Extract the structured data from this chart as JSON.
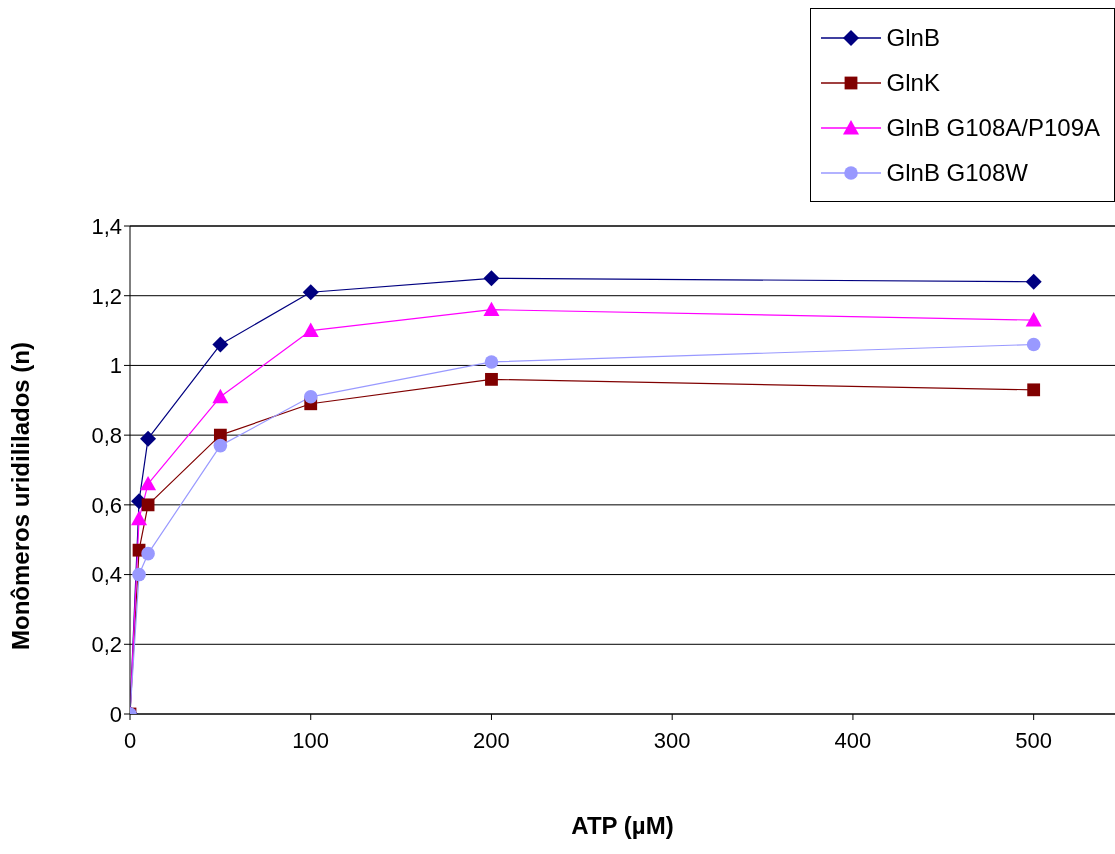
{
  "chart_data": {
    "type": "line",
    "xlabel": "ATP (µM)",
    "ylabel": "Monômeros uridililados (n)",
    "x": [
      0,
      5,
      10,
      50,
      100,
      200,
      500
    ],
    "series": [
      {
        "name": "GlnB",
        "color": "#000080",
        "marker": "diamond",
        "values": [
          0,
          0.61,
          0.79,
          1.06,
          1.21,
          1.25,
          1.24
        ]
      },
      {
        "name": "GlnK",
        "color": "#800000",
        "marker": "square",
        "values": [
          0,
          0.47,
          0.6,
          0.8,
          0.89,
          0.96,
          0.93
        ]
      },
      {
        "name": "GlnB G108A/P109A",
        "color": "#ff00ff",
        "marker": "triangle",
        "values": [
          0,
          0.56,
          0.66,
          0.91,
          1.1,
          1.16,
          1.13
        ]
      },
      {
        "name": "GlnB G108W",
        "color": "#9999ff",
        "marker": "circle",
        "values": [
          0,
          0.4,
          0.46,
          0.77,
          0.91,
          1.01,
          1.06
        ]
      }
    ],
    "xlim": [
      0,
      545
    ],
    "xticks": [
      0,
      100,
      200,
      300,
      400,
      500
    ],
    "ylim": [
      0,
      1.4
    ],
    "yticks": [
      0,
      {
        "value": 0.2,
        "label": "0,2"
      },
      {
        "value": 0.4,
        "label": "0,4"
      },
      {
        "value": 0.6,
        "label": "0,6"
      },
      {
        "value": 0.8,
        "label": "0,8"
      },
      1,
      {
        "value": 1.2,
        "label": "1,2"
      },
      {
        "value": 1.4,
        "label": "1,4"
      }
    ],
    "grid": "y",
    "legend": "top right",
    "line_style": "solid"
  }
}
